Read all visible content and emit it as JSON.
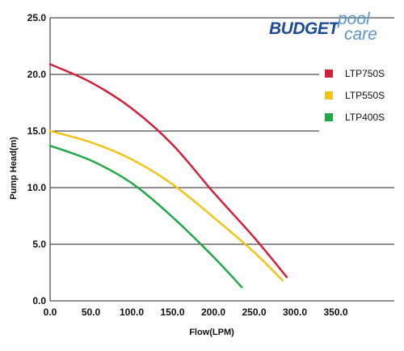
{
  "logo": {
    "brand_bold": "BUDGET",
    "brand_word1": "pool",
    "brand_word2": "care",
    "color_primary": "#1f4b96",
    "color_secondary": "#5a95cf"
  },
  "chart_data": {
    "type": "line",
    "title": "",
    "xlabel": "Flow(LPM)",
    "ylabel": "Pump Head(m)",
    "xlim": [
      0,
      350
    ],
    "ylim": [
      0,
      25
    ],
    "x_ticks": [
      "0.0",
      "50.0",
      "100.0",
      "150.0",
      "200.0",
      "250.0",
      "300.0",
      "350.0"
    ],
    "y_ticks": [
      "0.0",
      "5.0",
      "10.0",
      "15.0",
      "20.0",
      "25.0"
    ],
    "grid": "horizontal",
    "legend_position": "right",
    "series": [
      {
        "name": "LTP750S",
        "color": "#d0213a",
        "x": [
          0,
          50,
          100,
          150,
          200,
          250,
          290
        ],
        "y": [
          20.9,
          19.3,
          17.0,
          13.8,
          9.6,
          5.6,
          2.1
        ]
      },
      {
        "name": "LTP550S",
        "color": "#f2c318",
        "x": [
          0,
          50,
          100,
          150,
          200,
          250,
          285
        ],
        "y": [
          15.0,
          14.0,
          12.5,
          10.3,
          7.4,
          4.3,
          1.8
        ]
      },
      {
        "name": "LTP400S",
        "color": "#22a84a",
        "x": [
          0,
          50,
          100,
          150,
          200,
          235
        ],
        "y": [
          13.7,
          12.4,
          10.4,
          7.4,
          3.9,
          1.2
        ]
      }
    ]
  }
}
